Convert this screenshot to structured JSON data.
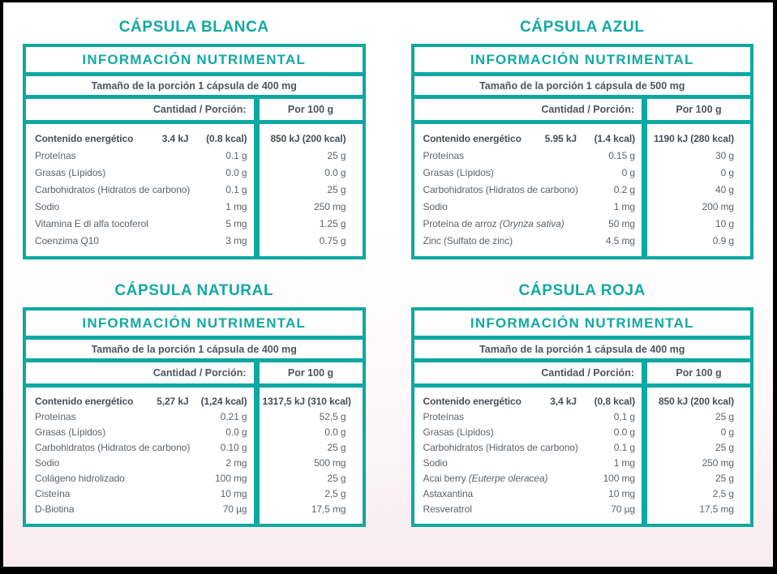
{
  "accent_color": "#0da8a2",
  "text_color": "#5a646c",
  "tables": [
    {
      "title": "CÁPSULA BLANCA",
      "header": "INFORMACIÓN NUTRIMENTAL",
      "serving": "Tamaño de la porción 1 cápsula de 400 mg",
      "col_portion": "Cantidad / Porción:",
      "col_per100": "Por 100 g",
      "energy": {
        "label": "Contenido energético",
        "kj": "3.4 kJ",
        "kcal": "(0.8 kcal)",
        "per100": "850 kJ (200 kcal)"
      },
      "rows": [
        {
          "label": "Proteínas",
          "italic": "",
          "amount": "0.1 g",
          "per100": "25 g"
        },
        {
          "label": "Grasas (Lípidos)",
          "italic": "",
          "amount": "0.0 g",
          "per100": "0.0 g"
        },
        {
          "label": "Carbohidratos (Hidratos de carbono)",
          "italic": "",
          "amount": "0.1 g",
          "per100": "25 g"
        },
        {
          "label": "Sodio",
          "italic": "",
          "amount": "1 mg",
          "per100": "250 mg"
        },
        {
          "label": "Vitamina E dl alfa tocoferol",
          "italic": "",
          "amount": "5 mg",
          "per100": "1.25 g"
        },
        {
          "label": "Coenzima Q10",
          "italic": "",
          "amount": "3 mg",
          "per100": "0.75 g"
        }
      ]
    },
    {
      "title": "CÁPSULA AZUL",
      "header": "INFORMACIÓN NUTRIMENTAL",
      "serving": "Tamaño de la porción 1 cápsula de 500 mg",
      "col_portion": "Cantidad / Porción:",
      "col_per100": "Por 100 g",
      "energy": {
        "label": "Contenido energético",
        "kj": "5.95 kJ",
        "kcal": "(1.4 kcal)",
        "per100": "1190 kJ (280 kcal)"
      },
      "rows": [
        {
          "label": "Proteínas",
          "italic": "",
          "amount": "0.15 g",
          "per100": "30 g"
        },
        {
          "label": "Grasas (Lípidos)",
          "italic": "",
          "amount": "0 g",
          "per100": "0 g"
        },
        {
          "label": "Carbohidratos (Hidratos de carbono)",
          "italic": "",
          "amount": "0.2 g",
          "per100": "40 g"
        },
        {
          "label": "Sodio",
          "italic": "",
          "amount": "1 mg",
          "per100": "200 mg"
        },
        {
          "label": "Proteína de arroz ",
          "italic": "(Orynza sativa)",
          "amount": "50 mg",
          "per100": "10 g"
        },
        {
          "label": "Zinc (Sulfato de zinc)",
          "italic": "",
          "amount": "4.5 mg",
          "per100": "0.9 g"
        }
      ]
    },
    {
      "title": "CÁPSULA NATURAL",
      "header": "INFORMACIÓN NUTRIMENTAL",
      "serving": "Tamaño de la porción 1 cápsula de 400 mg",
      "col_portion": "Cantidad / Porción:",
      "col_per100": "Por 100 g",
      "energy": {
        "label": "Contenido energético",
        "kj": "5,27 kJ",
        "kcal": "(1,24 kcal)",
        "per100": "1317,5 kJ (310 kcal)"
      },
      "rows": [
        {
          "label": "Proteínas",
          "italic": "",
          "amount": "0,21 g",
          "per100": "52,5 g"
        },
        {
          "label": "Grasas (Lípidos)",
          "italic": "",
          "amount": "0.0 g",
          "per100": "0.0 g"
        },
        {
          "label": "Carbohidratos (Hidratos de carbono)",
          "italic": "",
          "amount": "0.10 g",
          "per100": "25 g"
        },
        {
          "label": "Sodio",
          "italic": "",
          "amount": "2 mg",
          "per100": "500 mg"
        },
        {
          "label": "Colágeno hidrolizado",
          "italic": "",
          "amount": "100 mg",
          "per100": "25 g"
        },
        {
          "label": "Cisteína",
          "italic": "",
          "amount": "10 mg",
          "per100": "2,5 g"
        },
        {
          "label": "D-Biotina",
          "italic": "",
          "amount": "70 µg",
          "per100": "17,5 mg"
        }
      ]
    },
    {
      "title": "CÁPSULA ROJA",
      "header": "INFORMACIÓN NUTRIMENTAL",
      "serving": "Tamaño de la porción 1 cápsula de 400 mg",
      "col_portion": "Cantidad / Porción:",
      "col_per100": "Por 100 g",
      "energy": {
        "label": "Contenido energético",
        "kj": "3,4 kJ",
        "kcal": "(0,8 kcal)",
        "per100": "850 kJ (200 kcal)"
      },
      "rows": [
        {
          "label": "Proteínas",
          "italic": "",
          "amount": "0,1 g",
          "per100": "25 g"
        },
        {
          "label": "Grasas (Lípidos)",
          "italic": "",
          "amount": "0.0 g",
          "per100": "0 g"
        },
        {
          "label": "Carbohidratos (Hidratos de carbono)",
          "italic": "",
          "amount": "0.1 g",
          "per100": "25 g"
        },
        {
          "label": "Sodio",
          "italic": "",
          "amount": "1 mg",
          "per100": "250 mg"
        },
        {
          "label": "Acai berry ",
          "italic": "(Euterpe oleracea)",
          "amount": "100 mg",
          "per100": "25 g"
        },
        {
          "label": "Astaxantina",
          "italic": "",
          "amount": "10 mg",
          "per100": "2,5 g"
        },
        {
          "label": "Resveratrol",
          "italic": "",
          "amount": "70 µg",
          "per100": "17,5 mg"
        }
      ]
    }
  ]
}
